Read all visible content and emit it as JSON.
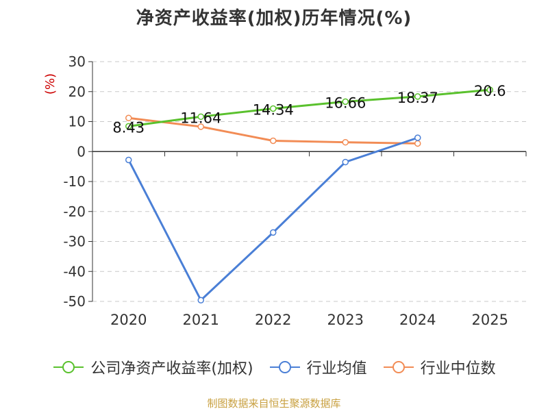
{
  "chart_data": {
    "type": "line",
    "title": "净资产收益率(加权)历年情况(%)",
    "ylabel": "(%)",
    "xlabel": "",
    "categories": [
      "2020",
      "2021",
      "2022",
      "2023",
      "2024",
      "2025"
    ],
    "ylim": [
      -50,
      30
    ],
    "yticks": [
      "30",
      "20",
      "10",
      "0",
      "-10",
      "-20",
      "-30",
      "-40",
      "-50"
    ],
    "grid": true,
    "legend_position": "bottom",
    "series": [
      {
        "name": "公司净资产收益率(加权)",
        "color": "#5ac12d",
        "values": [
          8.43,
          11.64,
          14.34,
          16.66,
          18.37,
          20.6
        ],
        "labels": [
          "8.43",
          "11.64",
          "14.34",
          "16.66",
          "18.37",
          "20.6"
        ]
      },
      {
        "name": "行业均值",
        "color": "#4a7fd6",
        "values": [
          -2.8,
          -49.6,
          -27.0,
          -3.5,
          4.6,
          null
        ]
      },
      {
        "name": "行业中位数",
        "color": "#f28c55",
        "values": [
          11.2,
          8.3,
          3.6,
          3.1,
          2.7,
          null
        ]
      }
    ]
  },
  "source": "制图数据来自恒生聚源数据库"
}
